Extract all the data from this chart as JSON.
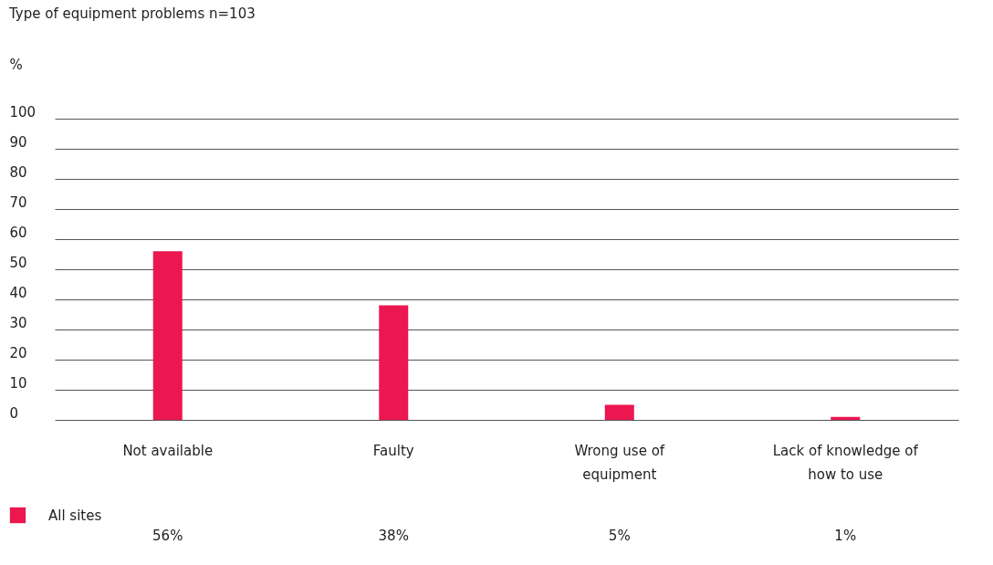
{
  "chart_data": {
    "type": "bar",
    "title": "Type of equipment problems n=103",
    "ylabel": "%",
    "categories": [
      "Not available",
      "Faulty",
      "Wrong use of equipment",
      "Lack of knowledge of how to use"
    ],
    "series": [
      {
        "name": "All sites",
        "color": "#ec1651",
        "values": [
          56,
          38,
          5,
          1
        ],
        "value_labels": [
          "56%",
          "38%",
          "5%",
          "1%"
        ]
      }
    ],
    "ylim": [
      0,
      100
    ],
    "yticks": [
      0,
      10,
      20,
      30,
      40,
      50,
      60,
      70,
      80,
      90,
      100
    ],
    "grid": "y",
    "legend": "bottom left"
  }
}
